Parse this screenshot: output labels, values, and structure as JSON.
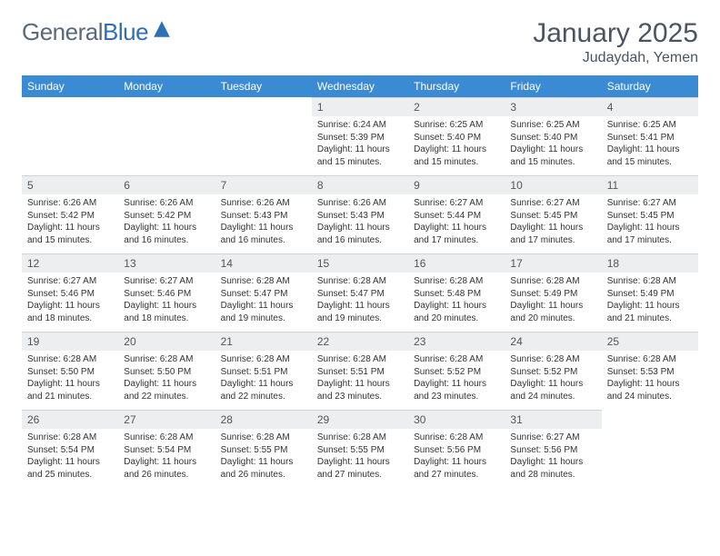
{
  "logo": {
    "part1": "General",
    "part2": "Blue"
  },
  "title": "January 2025",
  "location": "Judaydah, Yemen",
  "colors": {
    "header_bg": "#3b8bd4",
    "header_text": "#ffffff",
    "daynum_bg": "#eceef0",
    "body_text": "#333333",
    "title_text": "#4a5560"
  },
  "weekdays": [
    "Sunday",
    "Monday",
    "Tuesday",
    "Wednesday",
    "Thursday",
    "Friday",
    "Saturday"
  ],
  "weeks": [
    [
      null,
      null,
      null,
      {
        "n": "1",
        "sr": "Sunrise: 6:24 AM",
        "ss": "Sunset: 5:39 PM",
        "d1": "Daylight: 11 hours",
        "d2": "and 15 minutes."
      },
      {
        "n": "2",
        "sr": "Sunrise: 6:25 AM",
        "ss": "Sunset: 5:40 PM",
        "d1": "Daylight: 11 hours",
        "d2": "and 15 minutes."
      },
      {
        "n": "3",
        "sr": "Sunrise: 6:25 AM",
        "ss": "Sunset: 5:40 PM",
        "d1": "Daylight: 11 hours",
        "d2": "and 15 minutes."
      },
      {
        "n": "4",
        "sr": "Sunrise: 6:25 AM",
        "ss": "Sunset: 5:41 PM",
        "d1": "Daylight: 11 hours",
        "d2": "and 15 minutes."
      }
    ],
    [
      {
        "n": "5",
        "sr": "Sunrise: 6:26 AM",
        "ss": "Sunset: 5:42 PM",
        "d1": "Daylight: 11 hours",
        "d2": "and 15 minutes."
      },
      {
        "n": "6",
        "sr": "Sunrise: 6:26 AM",
        "ss": "Sunset: 5:42 PM",
        "d1": "Daylight: 11 hours",
        "d2": "and 16 minutes."
      },
      {
        "n": "7",
        "sr": "Sunrise: 6:26 AM",
        "ss": "Sunset: 5:43 PM",
        "d1": "Daylight: 11 hours",
        "d2": "and 16 minutes."
      },
      {
        "n": "8",
        "sr": "Sunrise: 6:26 AM",
        "ss": "Sunset: 5:43 PM",
        "d1": "Daylight: 11 hours",
        "d2": "and 16 minutes."
      },
      {
        "n": "9",
        "sr": "Sunrise: 6:27 AM",
        "ss": "Sunset: 5:44 PM",
        "d1": "Daylight: 11 hours",
        "d2": "and 17 minutes."
      },
      {
        "n": "10",
        "sr": "Sunrise: 6:27 AM",
        "ss": "Sunset: 5:45 PM",
        "d1": "Daylight: 11 hours",
        "d2": "and 17 minutes."
      },
      {
        "n": "11",
        "sr": "Sunrise: 6:27 AM",
        "ss": "Sunset: 5:45 PM",
        "d1": "Daylight: 11 hours",
        "d2": "and 17 minutes."
      }
    ],
    [
      {
        "n": "12",
        "sr": "Sunrise: 6:27 AM",
        "ss": "Sunset: 5:46 PM",
        "d1": "Daylight: 11 hours",
        "d2": "and 18 minutes."
      },
      {
        "n": "13",
        "sr": "Sunrise: 6:27 AM",
        "ss": "Sunset: 5:46 PM",
        "d1": "Daylight: 11 hours",
        "d2": "and 18 minutes."
      },
      {
        "n": "14",
        "sr": "Sunrise: 6:28 AM",
        "ss": "Sunset: 5:47 PM",
        "d1": "Daylight: 11 hours",
        "d2": "and 19 minutes."
      },
      {
        "n": "15",
        "sr": "Sunrise: 6:28 AM",
        "ss": "Sunset: 5:47 PM",
        "d1": "Daylight: 11 hours",
        "d2": "and 19 minutes."
      },
      {
        "n": "16",
        "sr": "Sunrise: 6:28 AM",
        "ss": "Sunset: 5:48 PM",
        "d1": "Daylight: 11 hours",
        "d2": "and 20 minutes."
      },
      {
        "n": "17",
        "sr": "Sunrise: 6:28 AM",
        "ss": "Sunset: 5:49 PM",
        "d1": "Daylight: 11 hours",
        "d2": "and 20 minutes."
      },
      {
        "n": "18",
        "sr": "Sunrise: 6:28 AM",
        "ss": "Sunset: 5:49 PM",
        "d1": "Daylight: 11 hours",
        "d2": "and 21 minutes."
      }
    ],
    [
      {
        "n": "19",
        "sr": "Sunrise: 6:28 AM",
        "ss": "Sunset: 5:50 PM",
        "d1": "Daylight: 11 hours",
        "d2": "and 21 minutes."
      },
      {
        "n": "20",
        "sr": "Sunrise: 6:28 AM",
        "ss": "Sunset: 5:50 PM",
        "d1": "Daylight: 11 hours",
        "d2": "and 22 minutes."
      },
      {
        "n": "21",
        "sr": "Sunrise: 6:28 AM",
        "ss": "Sunset: 5:51 PM",
        "d1": "Daylight: 11 hours",
        "d2": "and 22 minutes."
      },
      {
        "n": "22",
        "sr": "Sunrise: 6:28 AM",
        "ss": "Sunset: 5:51 PM",
        "d1": "Daylight: 11 hours",
        "d2": "and 23 minutes."
      },
      {
        "n": "23",
        "sr": "Sunrise: 6:28 AM",
        "ss": "Sunset: 5:52 PM",
        "d1": "Daylight: 11 hours",
        "d2": "and 23 minutes."
      },
      {
        "n": "24",
        "sr": "Sunrise: 6:28 AM",
        "ss": "Sunset: 5:52 PM",
        "d1": "Daylight: 11 hours",
        "d2": "and 24 minutes."
      },
      {
        "n": "25",
        "sr": "Sunrise: 6:28 AM",
        "ss": "Sunset: 5:53 PM",
        "d1": "Daylight: 11 hours",
        "d2": "and 24 minutes."
      }
    ],
    [
      {
        "n": "26",
        "sr": "Sunrise: 6:28 AM",
        "ss": "Sunset: 5:54 PM",
        "d1": "Daylight: 11 hours",
        "d2": "and 25 minutes."
      },
      {
        "n": "27",
        "sr": "Sunrise: 6:28 AM",
        "ss": "Sunset: 5:54 PM",
        "d1": "Daylight: 11 hours",
        "d2": "and 26 minutes."
      },
      {
        "n": "28",
        "sr": "Sunrise: 6:28 AM",
        "ss": "Sunset: 5:55 PM",
        "d1": "Daylight: 11 hours",
        "d2": "and 26 minutes."
      },
      {
        "n": "29",
        "sr": "Sunrise: 6:28 AM",
        "ss": "Sunset: 5:55 PM",
        "d1": "Daylight: 11 hours",
        "d2": "and 27 minutes."
      },
      {
        "n": "30",
        "sr": "Sunrise: 6:28 AM",
        "ss": "Sunset: 5:56 PM",
        "d1": "Daylight: 11 hours",
        "d2": "and 27 minutes."
      },
      {
        "n": "31",
        "sr": "Sunrise: 6:27 AM",
        "ss": "Sunset: 5:56 PM",
        "d1": "Daylight: 11 hours",
        "d2": "and 28 minutes."
      },
      null
    ]
  ]
}
